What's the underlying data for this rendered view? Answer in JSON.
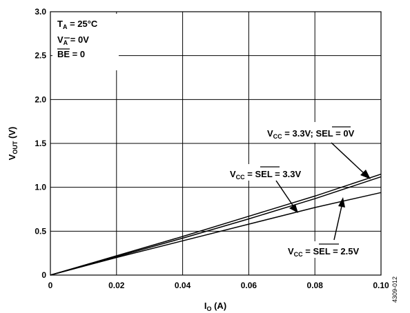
{
  "chart_data": {
    "type": "line",
    "xlabel": {
      "main": "I",
      "sub": "O",
      "unit": " (A)"
    },
    "ylabel": {
      "main": "V",
      "sub": "OUT",
      "unit": " (V)"
    },
    "xlim": [
      0,
      0.1
    ],
    "ylim": [
      0,
      3.0
    ],
    "xticks": [
      0,
      0.02,
      0.04,
      0.06,
      0.08,
      0.1
    ],
    "xtick_labels": [
      "0",
      "0.02",
      "0.04",
      "0.06",
      "0.08",
      "0.10"
    ],
    "yticks": [
      0,
      0.5,
      1.0,
      1.5,
      2.0,
      2.5,
      3.0
    ],
    "ytick_labels": [
      "0",
      "0.5",
      "1.0",
      "1.5",
      "2.0",
      "2.5",
      "3.0"
    ],
    "grid": true,
    "series": [
      {
        "x": [
          0,
          0.02,
          0.04,
          0.06,
          0.08,
          0.1
        ],
        "y": [
          0,
          0.22,
          0.44,
          0.67,
          0.9,
          1.15
        ]
      },
      {
        "x": [
          0,
          0.02,
          0.04,
          0.06,
          0.08,
          0.1
        ],
        "y": [
          0,
          0.21,
          0.42,
          0.64,
          0.87,
          1.12
        ]
      },
      {
        "x": [
          0,
          0.02,
          0.04,
          0.06,
          0.08,
          0.1
        ],
        "y": [
          0,
          0.2,
          0.39,
          0.58,
          0.77,
          0.94
        ]
      }
    ],
    "conditions": [
      {
        "main": "T",
        "sub": "A",
        "rest": " = 25°C"
      },
      {
        "main": "V",
        "sub": "A",
        "rest": " = 0V"
      },
      {
        "main": "BE",
        "sub": "",
        "rest": " = 0"
      }
    ],
    "annotations": [
      {
        "main": "V",
        "sub": "CC",
        "mid": " = 3.3V; ",
        "bar": "SEL",
        "rest": " = 0V",
        "arrow_to": [
          0.1,
          1.15
        ]
      },
      {
        "main": "V",
        "sub": "CC",
        "mid": " = ",
        "bar": "SEL",
        "rest": " = 3.3V",
        "arrow_to": [
          0.075,
          0.85
        ]
      },
      {
        "main": "V",
        "sub": "CC",
        "mid": " = ",
        "bar": "SEL",
        "rest": " = 2.5V",
        "arrow_to": [
          0.088,
          0.9
        ]
      }
    ],
    "figure_id": "4309-012"
  }
}
